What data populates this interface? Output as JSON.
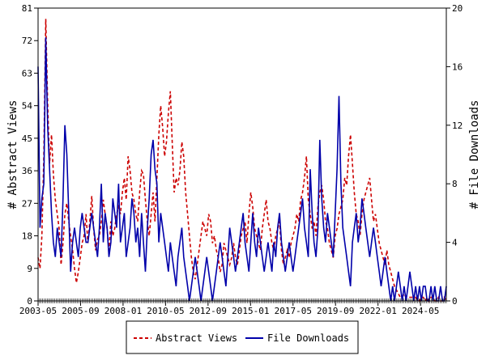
{
  "chart_data": {
    "type": "line",
    "title": "",
    "xlabel": "",
    "ylabel": "# Abstract Views",
    "y2label": "# File Downloads",
    "x_start": "2003-05",
    "x_end": "2025-10",
    "x_tick_labels": [
      "2003-05",
      "2005-09",
      "2008-01",
      "2010-05",
      "2012-09",
      "2015-01",
      "2017-05",
      "2019-09",
      "2022-01",
      "2024-05"
    ],
    "ylim": [
      0,
      81
    ],
    "y_ticks": [
      0,
      9,
      18,
      27,
      36,
      45,
      54,
      63,
      72,
      81
    ],
    "y2lim": [
      0,
      20
    ],
    "y2_ticks": [
      0,
      4,
      8,
      12,
      16,
      20
    ],
    "grid": false,
    "legend_position": "bottom-center",
    "series": [
      {
        "name": "Abstract Views",
        "axis": "left",
        "color": "#cc0000",
        "style": "dashed",
        "values": [
          12,
          9,
          18,
          40,
          78,
          55,
          38,
          46,
          35,
          28,
          24,
          20,
          10,
          16,
          24,
          27,
          22,
          18,
          14,
          9,
          5,
          8,
          12,
          16,
          18,
          24,
          16,
          22,
          29,
          20,
          14,
          17,
          18,
          22,
          28,
          24,
          20,
          14,
          22,
          18,
          20,
          24,
          26,
          24,
          30,
          34,
          28,
          40,
          36,
          30,
          28,
          24,
          22,
          30,
          36,
          35,
          28,
          22,
          18,
          24,
          30,
          22,
          34,
          46,
          54,
          48,
          40,
          44,
          52,
          58,
          44,
          30,
          34,
          32,
          36,
          44,
          40,
          30,
          24,
          18,
          12,
          8,
          6,
          10,
          14,
          18,
          22,
          20,
          18,
          24,
          22,
          16,
          18,
          14,
          12,
          8,
          10,
          16,
          14,
          12,
          10,
          12,
          16,
          12,
          10,
          14,
          18,
          20,
          22,
          16,
          24,
          30,
          26,
          20,
          18,
          16,
          14,
          20,
          24,
          28,
          22,
          20,
          16,
          14,
          18,
          20,
          22,
          14,
          10,
          12,
          14,
          12,
          16,
          18,
          20,
          24,
          22,
          28,
          30,
          34,
          40,
          28,
          24,
          20,
          22,
          18,
          26,
          30,
          32,
          28,
          22,
          20,
          16,
          14,
          12,
          18,
          20,
          24,
          26,
          28,
          34,
          32,
          40,
          46,
          38,
          30,
          24,
          22,
          18,
          24,
          28,
          30,
          32,
          34,
          28,
          22,
          24,
          20,
          16,
          14,
          12,
          10,
          14,
          10,
          8,
          6,
          4,
          3,
          2,
          1,
          1,
          2,
          1,
          1,
          1,
          1,
          1,
          1,
          0,
          0,
          1,
          1,
          0,
          1,
          0,
          1,
          1,
          0,
          0,
          1,
          0,
          0,
          1,
          0
        ]
      },
      {
        "name": "File Downloads",
        "axis": "right",
        "color": "#0000aa",
        "style": "solid",
        "values": [
          16,
          5,
          7,
          8,
          18,
          12,
          9,
          6,
          4,
          3,
          5,
          4,
          3,
          7,
          12,
          10,
          6,
          2,
          4,
          5,
          4,
          3,
          5,
          6,
          5,
          4,
          4,
          5,
          6,
          5,
          4,
          3,
          5,
          8,
          4,
          6,
          5,
          3,
          4,
          7,
          6,
          5,
          8,
          4,
          5,
          6,
          3,
          4,
          5,
          7,
          6,
          4,
          5,
          3,
          6,
          4,
          2,
          5,
          7,
          10,
          11,
          9,
          8,
          4,
          6,
          5,
          4,
          3,
          2,
          4,
          3,
          2,
          1,
          3,
          4,
          5,
          3,
          2,
          1,
          0,
          1,
          2,
          3,
          2,
          1,
          0,
          1,
          2,
          3,
          2,
          1,
          0,
          1,
          2,
          3,
          4,
          3,
          2,
          1,
          3,
          5,
          4,
          3,
          2,
          3,
          4,
          5,
          6,
          4,
          3,
          2,
          4,
          6,
          4,
          3,
          5,
          4,
          3,
          2,
          3,
          4,
          3,
          2,
          4,
          3,
          5,
          6,
          4,
          3,
          2,
          3,
          4,
          3,
          2,
          3,
          4,
          5,
          6,
          7,
          5,
          4,
          3,
          9,
          6,
          4,
          3,
          5,
          11,
          7,
          5,
          4,
          6,
          5,
          4,
          3,
          6,
          9,
          14,
          8,
          5,
          4,
          3,
          2,
          1,
          4,
          5,
          6,
          4,
          5,
          7,
          6,
          5,
          4,
          3,
          4,
          5,
          4,
          3,
          2,
          1,
          2,
          3,
          2,
          1,
          0,
          1,
          0,
          1,
          2,
          1,
          0,
          1,
          0,
          1,
          2,
          1,
          0,
          1,
          0,
          1,
          0,
          1,
          1,
          0,
          0,
          1,
          0,
          1,
          0,
          0,
          1,
          0,
          0,
          1
        ]
      }
    ]
  }
}
